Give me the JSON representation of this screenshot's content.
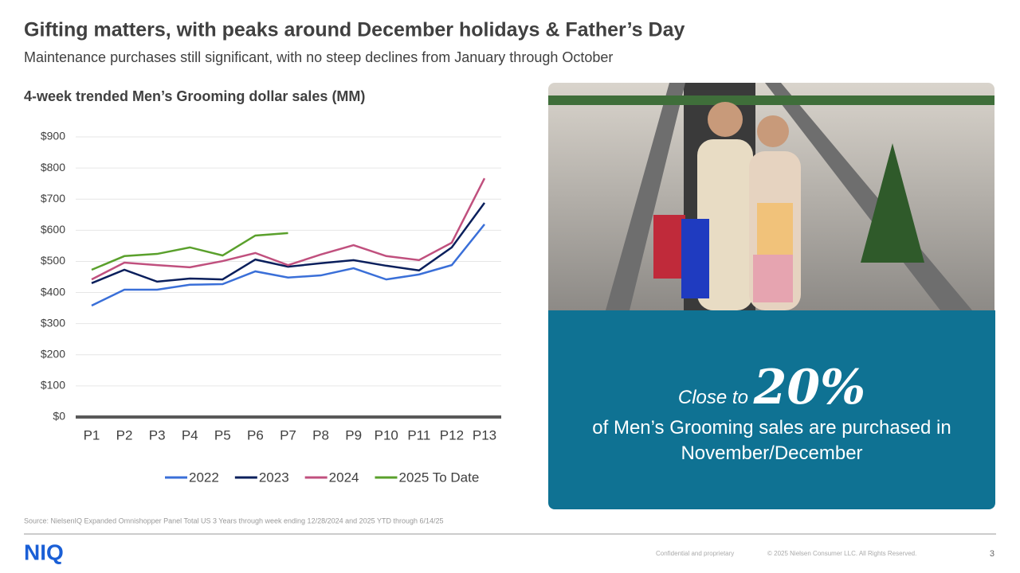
{
  "header": {
    "title": "Gifting matters, with peaks around December holidays & Father’s Day",
    "subtitle": "Maintenance purchases still significant, with no steep declines from January through October"
  },
  "chart_data": {
    "type": "line",
    "title": "4-week trended Men’s Grooming dollar sales (MM)",
    "categories": [
      "P1",
      "P2",
      "P3",
      "P4",
      "P5",
      "P6",
      "P7",
      "P8",
      "P9",
      "P10",
      "P11",
      "P12",
      "P13"
    ],
    "series": [
      {
        "name": "2022",
        "color": "#3a6fd8",
        "values": [
          358,
          409,
          409,
          425,
          427,
          468,
          448,
          455,
          478,
          442,
          458,
          488,
          619
        ]
      },
      {
        "name": "2023",
        "color": "#0a1f5c",
        "values": [
          430,
          473,
          435,
          445,
          442,
          506,
          483,
          494,
          504,
          486,
          471,
          545,
          688
        ]
      },
      {
        "name": "2024",
        "color": "#c0507e",
        "values": [
          442,
          496,
          488,
          481,
          501,
          527,
          488,
          522,
          552,
          517,
          504,
          560,
          767
        ]
      },
      {
        "name": "2025 To Date",
        "color": "#5aa02c",
        "values": [
          473,
          517,
          524,
          545,
          519,
          583,
          591,
          null,
          null,
          null,
          null,
          null,
          null
        ]
      }
    ],
    "ylim": [
      0,
      900
    ],
    "yticks": [
      {
        "value": 0,
        "label": "$0"
      },
      {
        "value": 100,
        "label": "$100"
      },
      {
        "value": 200,
        "label": "$200"
      },
      {
        "value": 300,
        "label": "$300"
      },
      {
        "value": 400,
        "label": "$400"
      },
      {
        "value": 500,
        "label": "$500"
      },
      {
        "value": 600,
        "label": "$600"
      },
      {
        "value": 700,
        "label": "$700"
      },
      {
        "value": 800,
        "label": "$800"
      },
      {
        "value": 900,
        "label": "$900"
      }
    ],
    "grid": true,
    "legend": "bottom"
  },
  "callout": {
    "lead": "Close to",
    "figure": "20%",
    "text": "of Men’s Grooming sales are purchased in November/December"
  },
  "footer": {
    "source": "Source: NielsenIQ Expanded Omnishopper Panel Total US 3 Years through week ending 12/28/2024 and 2025 YTD through 6/14/25",
    "logo": "NIQ",
    "confidential": "Confidential and proprietary",
    "copyright": "© 2025 Nielsen Consumer LLC. All Rights Reserved.",
    "page": "3"
  }
}
